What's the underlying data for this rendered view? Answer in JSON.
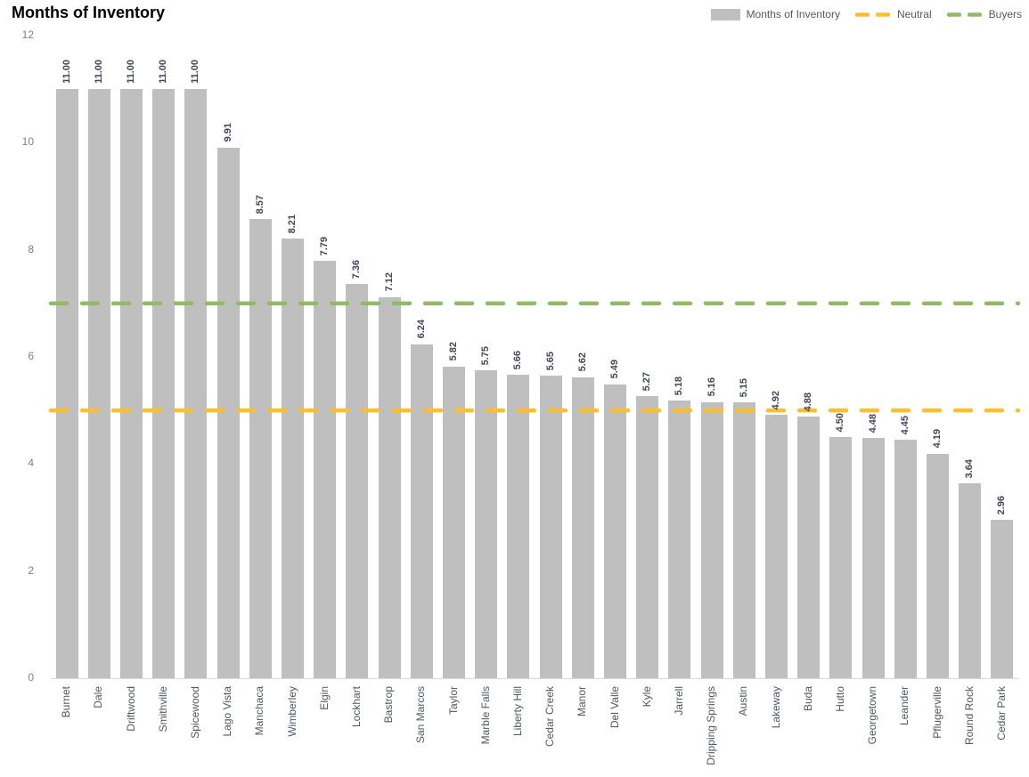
{
  "chart_data": {
    "type": "bar",
    "title": "Months of Inventory",
    "series_name": "Months of Inventory",
    "categories": [
      "Burnet",
      "Dale",
      "Driftwood",
      "Smithville",
      "Spicewood",
      "Lago Vista",
      "Manchaca",
      "Wimberley",
      "Elgin",
      "Lockhart",
      "Bastrop",
      "San Marcos",
      "Taylor",
      "Marble Falls",
      "Liberty Hill",
      "Cedar Creek",
      "Manor",
      "Del Valle",
      "Kyle",
      "Jarrell",
      "Dripping Springs",
      "Austin",
      "Lakeway",
      "Buda",
      "Hutto",
      "Georgetown",
      "Leander",
      "Pflugerville",
      "Round Rock",
      "Cedar Park"
    ],
    "values": [
      11.0,
      11.0,
      11.0,
      11.0,
      11.0,
      9.91,
      8.57,
      8.21,
      7.79,
      7.36,
      7.12,
      6.24,
      5.82,
      5.75,
      5.66,
      5.65,
      5.62,
      5.49,
      5.27,
      5.18,
      5.16,
      5.15,
      4.92,
      4.88,
      4.5,
      4.48,
      4.45,
      4.19,
      3.64,
      2.96
    ],
    "value_labels_decimals": 2,
    "xlabel": "",
    "ylabel": "",
    "ylim": [
      0,
      12
    ],
    "yticks": [
      0,
      2,
      4,
      6,
      8,
      10,
      12
    ],
    "grid": false,
    "legend_position": "top-right",
    "bar_color": "#BFBFBF",
    "reference_lines": [
      {
        "name": "Neutral",
        "value": 5,
        "color": "#FBBF2C",
        "style": "dashed"
      },
      {
        "name": "Buyers",
        "value": 7,
        "color": "#8FBC62",
        "style": "dashed"
      }
    ]
  },
  "legend": {
    "items": [
      {
        "label": "Months of Inventory",
        "swatch": "bar",
        "color": "#BFBFBF"
      },
      {
        "label": "Neutral",
        "swatch": "dash",
        "color": "#FBBF2C"
      },
      {
        "label": "Buyers",
        "swatch": "dash",
        "color": "#8FBC62"
      }
    ]
  },
  "colors": {
    "bar": "#BFBFBF",
    "value_label": "#3F4756",
    "category_label": "#4E5866",
    "tick_label": "#7F7F7F",
    "legend_text": "#595959",
    "baseline": "#D9D9D9",
    "title": "#000000",
    "background": "#FFFFFF"
  }
}
